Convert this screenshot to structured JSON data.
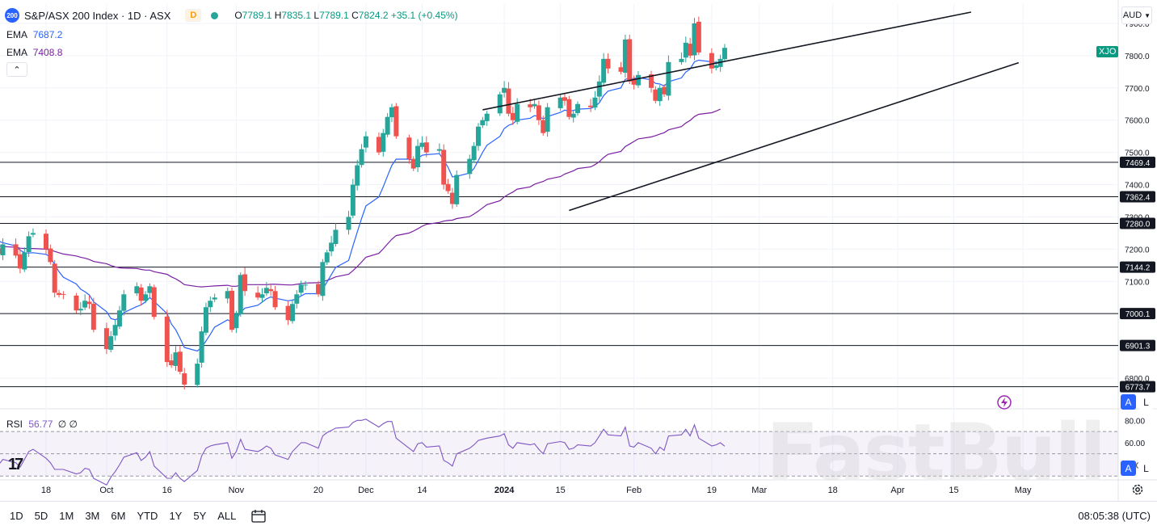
{
  "header": {
    "symbol_badge": "200",
    "title": "S&P/ASX 200 Index · 1D · ASX",
    "d_badge": "D",
    "ohlc": {
      "o": "7789.1",
      "h": "7835.1",
      "l": "7789.1",
      "c": "7824.2",
      "change": "+35.1 (+0.45%)"
    }
  },
  "ema_fast": {
    "label": "EMA",
    "value": "7687.2"
  },
  "ema_slow": {
    "label": "EMA",
    "value": "7408.8"
  },
  "rsi_legend": {
    "label": "RSI",
    "value": "56.77",
    "extra": "∅ ∅"
  },
  "currency": "AUD",
  "symbol_tag": "XJO",
  "scale_buttons": {
    "a": "A",
    "l": "L"
  },
  "ranges": [
    "1D",
    "5D",
    "1M",
    "3M",
    "6M",
    "YTD",
    "1Y",
    "5Y",
    "ALL"
  ],
  "clock": "08:05:38 (UTC)",
  "watermark": "FastBull",
  "colors": {
    "up": "#26a69a",
    "down": "#ef5350",
    "ema_fast": "#2962ff",
    "ema_slow": "#7b1fa2",
    "rsi": "#7e57c2"
  },
  "chart_data": {
    "type": "candlestick",
    "price_axis": {
      "range": [
        6720,
        7960
      ],
      "ticks": [
        6800,
        6900,
        7000,
        7100,
        7200,
        7300,
        7400,
        7500,
        7600,
        7700,
        7800,
        7900
      ],
      "tick_labels": [
        "6800.0",
        "6900.0",
        "7000.0",
        "7100.0",
        "7200.0",
        "7300.0",
        "7400.0",
        "7500.0",
        "7600.0",
        "7700.0",
        "7800.0",
        "7900.0"
      ]
    },
    "x_axis": {
      "labels": [
        {
          "label": "18",
          "date": "2023-09-18"
        },
        {
          "label": "Oct",
          "date": "2023-10-02"
        },
        {
          "label": "16",
          "date": "2023-10-16"
        },
        {
          "label": "Nov",
          "date": "2023-11-01"
        },
        {
          "label": "20",
          "date": "2023-11-20"
        },
        {
          "label": "Dec",
          "date": "2023-12-01"
        },
        {
          "label": "14",
          "date": "2023-12-14"
        },
        {
          "label": "2024",
          "date": "2024-01-02"
        },
        {
          "label": "15",
          "date": "2024-01-15"
        },
        {
          "label": "Feb",
          "date": "2024-02-01"
        },
        {
          "label": "19",
          "date": "2024-02-19"
        },
        {
          "label": "Mar",
          "date": "2024-03-01"
        },
        {
          "label": "18",
          "date": "2024-03-18"
        },
        {
          "label": "Apr",
          "date": "2024-04-02"
        },
        {
          "label": "15",
          "date": "2024-04-15"
        },
        {
          "label": "May",
          "date": "2024-05-01"
        }
      ]
    },
    "horizontal_levels": [
      7469.4,
      7362.4,
      7280.0,
      7144.2,
      7000.1,
      6901.3,
      6773.7
    ],
    "horizontal_level_labels": [
      "7469.4",
      "7362.4",
      "7280.0",
      "7144.2",
      "7000.1",
      "6901.3",
      "6773.7"
    ],
    "trendlines": [
      {
        "name": "upper-channel",
        "start": {
          "date": "2023-12-28",
          "value": 7632
        },
        "end": {
          "date": "2024-04-19",
          "value": 7935
        }
      },
      {
        "name": "lower-channel",
        "start": {
          "date": "2024-01-17",
          "value": 7320
        },
        "end": {
          "date": "2024-04-30",
          "value": 7778
        }
      }
    ],
    "closes": [
      7260,
      7200,
      7185,
      7215,
      7180,
      7140,
      7190,
      7240,
      7250,
      7200,
      7160,
      7065,
      7058,
      7060,
      7010,
      7015,
      7040,
      7030,
      6950,
      6890,
      6930,
      6965,
      7010,
      7060,
      7085,
      7040,
      7060,
      7085,
      6990,
      6850,
      6840,
      6880,
      6820,
      6780,
      6845,
      6945,
      7020,
      7040,
      7050,
      7070,
      6950,
      7000,
      7120,
      7070,
      7050,
      7060,
      7080,
      7070,
      7020,
      6980,
      7030,
      7060,
      7090,
      7090,
      7060,
      7160,
      7190,
      7220,
      7260,
      7300,
      7400,
      7460,
      7510,
      7550,
      7500,
      7560,
      7610,
      7640,
      7550,
      7480,
      7450,
      7520,
      7530,
      7500,
      7510,
      7400,
      7380,
      7340,
      7430,
      7480,
      7520,
      7580,
      7600,
      7620,
      7680,
      7700,
      7620,
      7600,
      7650,
      7640,
      7650,
      7600,
      7560,
      7640,
      7670,
      7660,
      7610,
      7620,
      7650,
      7640,
      7670,
      7720,
      7790,
      7760,
      7750,
      7850,
      7720,
      7710,
      7740,
      7700,
      7660,
      7700,
      7680,
      7780,
      7790,
      7840,
      7800,
      7900,
      7810,
      7760,
      7770,
      7790,
      7824.2
    ],
    "ema_fast": [
      7240,
      7233,
      7225,
      7220,
      7210,
      7197,
      7189,
      7188,
      7189,
      7184,
      7176,
      7152,
      7130,
      7113,
      7092,
      7076,
      7068,
      7058,
      7037,
      7006,
      6985,
      6981,
      6987,
      7003,
      7022,
      7027,
      7037,
      7050,
      7038,
      7000,
      6968,
      6950,
      6924,
      6895,
      6884,
      6896,
      6915,
      6936,
      6958,
      6981,
      6974,
      6980,
      7004,
      7017,
      7026,
      7036,
      7046,
      7052,
      7048,
      7040,
      7042,
      7046,
      7055,
      7062,
      7062,
      7076,
      7098,
      7121,
      7143,
      7165,
      7210,
      7253,
      7295,
      7334,
      7362,
      7393,
      7427,
      7460,
      7479,
      7479,
      7475,
      7482,
      7491,
      7493,
      7496,
      7476,
      7454,
      7424,
      7426,
      7436,
      7450,
      7475,
      7500,
      7522,
      7550,
      7574,
      7584,
      7589,
      7600,
      7606,
      7614,
      7611,
      7604,
      7611,
      7624,
      7631,
      7628,
      7630,
      7634,
      7636,
      7642,
      7654,
      7676,
      7690,
      7700,
      7727,
      7729,
      7729,
      7732,
      7725,
      7714,
      7712,
      7706,
      7719,
      7731,
      7749,
      7758,
      7781,
      7786,
      7781,
      7779,
      7780,
      7687.2
    ],
    "ema_slow": [
      7212,
      7211,
      7210,
      7208,
      7206,
      7203,
      7202,
      7202,
      7202,
      7200,
      7198,
      7193,
      7189,
      7185,
      7179,
      7175,
      7172,
      7168,
      7162,
      7155,
      7149,
      7145,
      7142,
      7141,
      7140,
      7137,
      7135,
      7135,
      7130,
      7122,
      7114,
      7108,
      7100,
      7090,
      7084,
      7083,
      7084,
      7085,
      7086,
      7088,
      7085,
      7085,
      7088,
      7090,
      7090,
      7090,
      7090,
      7091,
      7091,
      7089,
      7089,
      7091,
      7093,
      7095,
      7096,
      7099,
      7103,
      7108,
      7114,
      7122,
      7133,
      7146,
      7160,
      7175,
      7187,
      7201,
      7216,
      7231,
      7242,
      7250,
      7256,
      7263,
      7271,
      7277,
      7283,
      7287,
      7289,
      7290,
      7295,
      7301,
      7309,
      7318,
      7328,
      7338,
      7350,
      7362,
      7370,
      7377,
      7386,
      7393,
      7401,
      7406,
      7410,
      7417,
      7425,
      7433,
      7438,
      7443,
      7450,
      7455,
      7462,
      7471,
      7484,
      7494,
      7503,
      7518,
      7526,
      7534,
      7542,
      7548,
      7552,
      7557,
      7561,
      7570,
      7580,
      7591,
      7599,
      7611,
      7618,
      7623,
      7628,
      7634,
      7408.8
    ],
    "rsi_axis": {
      "range": [
        28,
        86
      ],
      "ticks": [
        40,
        60,
        80
      ],
      "tick_labels": [
        "40.00",
        "60.00",
        "80.00"
      ],
      "band": [
        30,
        70
      ]
    },
    "rsi": [
      48,
      42,
      40,
      45,
      42,
      38,
      45,
      52,
      54,
      46,
      42,
      36,
      36,
      36,
      32,
      33,
      37,
      36,
      28,
      22,
      29,
      34,
      40,
      47,
      51,
      44,
      47,
      52,
      39,
      28,
      28,
      33,
      28,
      25,
      35,
      48,
      55,
      57,
      58,
      60,
      46,
      52,
      63,
      54,
      52,
      54,
      57,
      55,
      49,
      45,
      52,
      56,
      60,
      60,
      55,
      66,
      69,
      71,
      73,
      74,
      78,
      80,
      80,
      81,
      74,
      77,
      79,
      79,
      64,
      55,
      52,
      59,
      60,
      56,
      57,
      44,
      42,
      39,
      50,
      55,
      58,
      62,
      63,
      64,
      66,
      68,
      58,
      55,
      60,
      58,
      59,
      54,
      50,
      59,
      61,
      60,
      54,
      55,
      58,
      57,
      60,
      66,
      72,
      67,
      66,
      74,
      57,
      56,
      60,
      55,
      50,
      56,
      53,
      66,
      67,
      72,
      66,
      76,
      64,
      57,
      58,
      60,
      56.77
    ]
  }
}
